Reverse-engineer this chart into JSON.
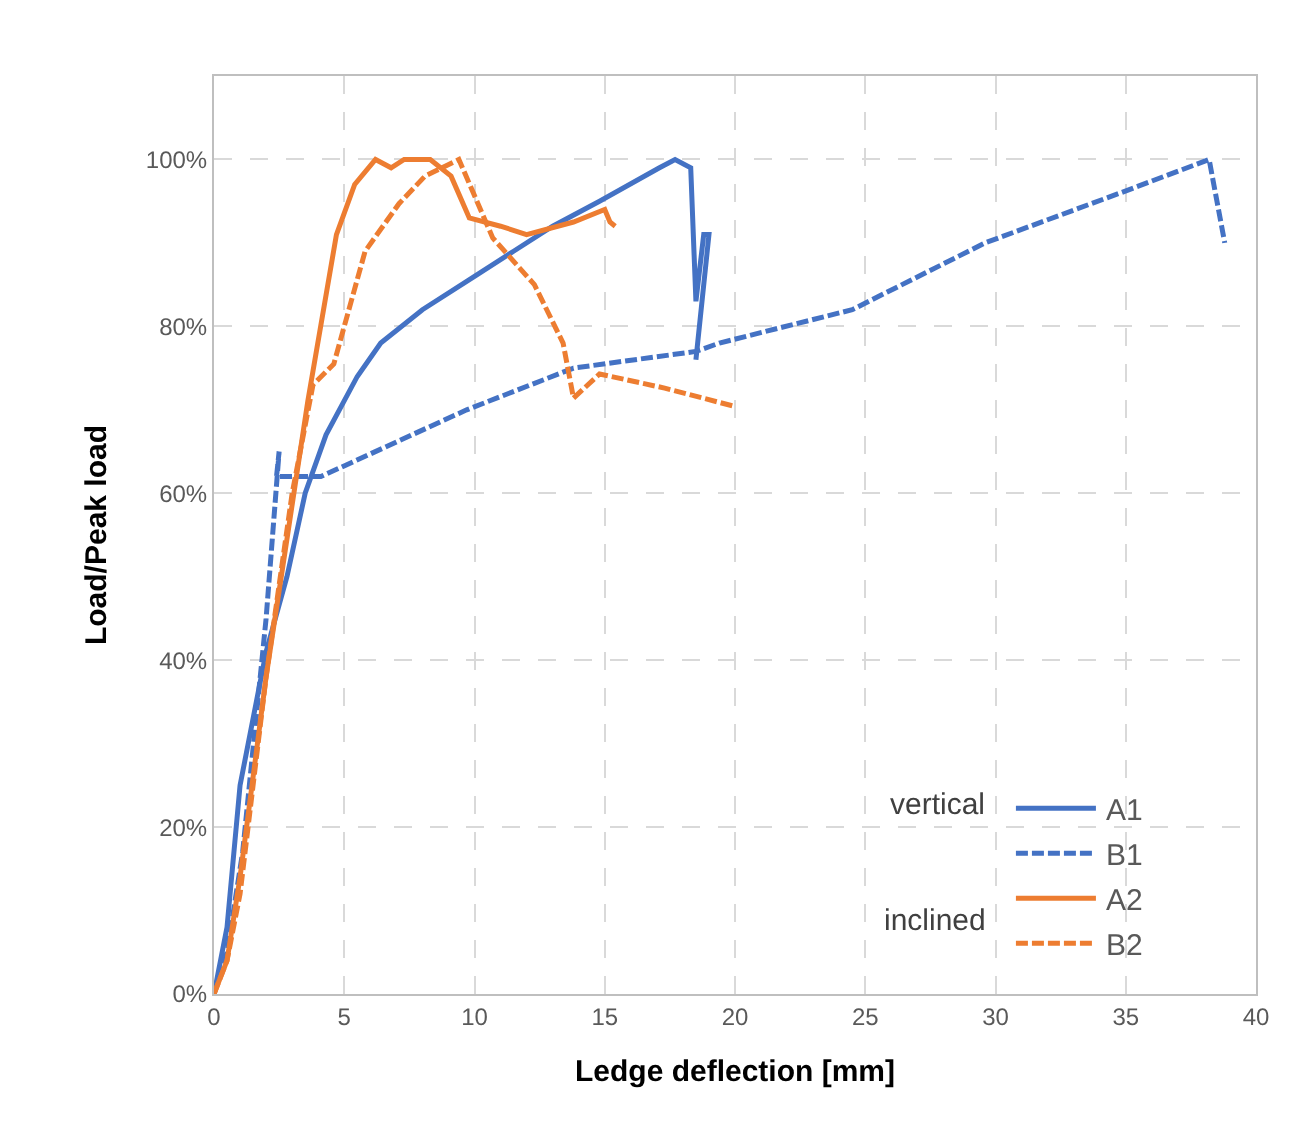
{
  "chart_data": {
    "type": "line",
    "xlabel": "Ledge deflection [mm]",
    "ylabel": "Load/Peak load",
    "xlim": [
      0,
      40
    ],
    "xticks": [
      0,
      5,
      10,
      15,
      20,
      25,
      30,
      35,
      40
    ],
    "ylim": [
      0,
      110
    ],
    "yticks": [
      {
        "value": 0,
        "label": "0%"
      },
      {
        "value": 20,
        "label": "20%"
      },
      {
        "value": 40,
        "label": "40%"
      },
      {
        "value": 60,
        "label": "60%"
      },
      {
        "value": 80,
        "label": "80%"
      },
      {
        "value": 100,
        "label": "100%"
      }
    ],
    "grid": true,
    "legend": "bottom right",
    "marker": "none",
    "annotations": [
      "vertical",
      "inclined"
    ],
    "series": [
      {
        "name": "A1",
        "color": "#4472c4",
        "line_style": "solid",
        "x": [
          0,
          0.5,
          1,
          2,
          2.8,
          3.5,
          4.3,
          5.5,
          6.4,
          8,
          10,
          11.5,
          13,
          14.8,
          17.1,
          17.7,
          18.3,
          18.5,
          18.8,
          19.0,
          18.5
        ],
        "values": [
          0,
          8,
          25,
          41,
          50,
          60,
          67,
          74,
          78,
          82,
          86,
          89,
          92,
          95,
          99,
          100,
          99,
          83,
          91,
          91,
          76
        ]
      },
      {
        "name": "B1",
        "color": "#4472c4",
        "line_style": "dashed",
        "x": [
          0,
          0.5,
          1.1,
          2.0,
          2.5,
          2.4,
          4.1,
          9.7,
          13.8,
          18.5,
          19.4,
          24.5,
          29.6,
          34.8,
          38.2,
          38.8
        ],
        "values": [
          0,
          5,
          17,
          45,
          65,
          62,
          62,
          70,
          75,
          77,
          78,
          82,
          90,
          96,
          100,
          90
        ]
      },
      {
        "name": "A2",
        "color": "#ed7d31",
        "line_style": "solid",
        "x": [
          0,
          0.5,
          1.0,
          2.0,
          3.6,
          4.7,
          5.4,
          6.2,
          6.8,
          7.3,
          8.3,
          9.1,
          9.8,
          11.0,
          12.0,
          13.8,
          15.0,
          15.2,
          15.4
        ],
        "values": [
          0,
          4,
          14,
          38,
          71,
          91,
          97,
          100,
          99,
          100,
          100,
          98,
          93,
          92,
          91,
          92.5,
          94,
          92.5,
          92
        ]
      },
      {
        "name": "B2",
        "color": "#ed7d31",
        "line_style": "dashed",
        "x": [
          0,
          0.5,
          1.0,
          2.0,
          3.0,
          3.8,
          4.6,
          5.8,
          7.1,
          8.1,
          9.4,
          10.7,
          12.3,
          13.4,
          13.8,
          14.8,
          17.3,
          20.0
        ],
        "values": [
          0,
          4,
          12,
          38,
          60,
          73,
          75.5,
          89,
          94.7,
          98,
          100,
          90.6,
          85,
          78,
          71.4,
          74.3,
          72.6,
          70.4
        ]
      }
    ]
  }
}
